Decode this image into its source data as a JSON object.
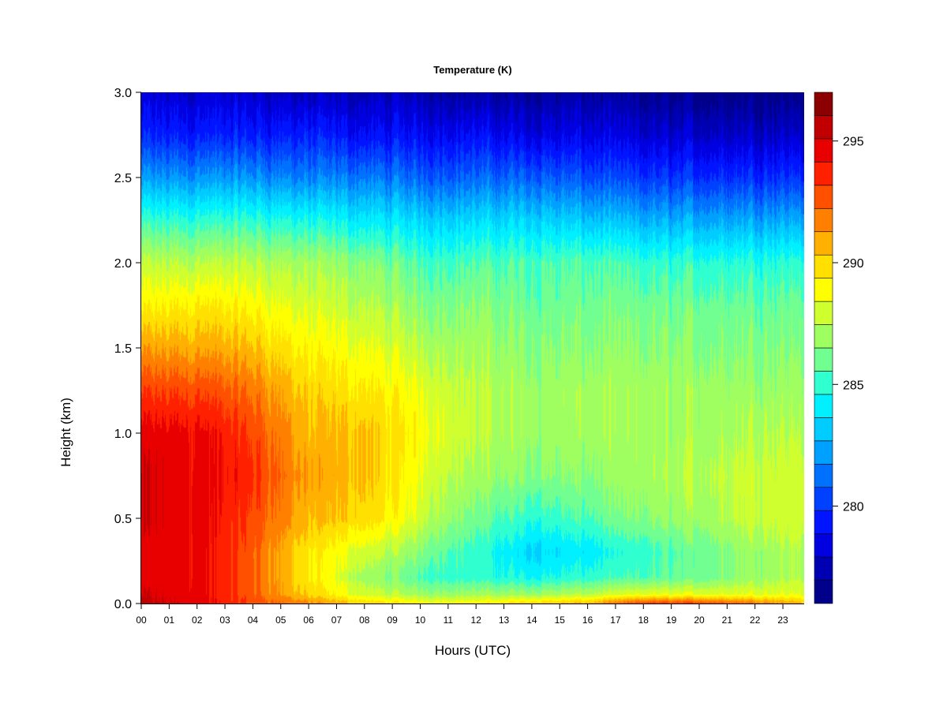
{
  "chart_data": {
    "type": "heatmap",
    "title": "Temperature (K)",
    "xlabel": "Hours (UTC)",
    "ylabel": "Height (km)",
    "x_ticks": [
      "00",
      "01",
      "02",
      "03",
      "04",
      "05",
      "06",
      "07",
      "08",
      "09",
      "10",
      "11",
      "12",
      "13",
      "14",
      "15",
      "16",
      "17",
      "18",
      "19",
      "20",
      "21",
      "22",
      "23"
    ],
    "y_ticks": [
      "0.0",
      "0.5",
      "1.0",
      "1.5",
      "2.0",
      "2.5",
      "3.0"
    ],
    "xlim": [
      0,
      23.8
    ],
    "ylim": [
      0,
      3.0
    ],
    "colorbar": {
      "label": "",
      "min": 276,
      "max": 297,
      "ticks": [
        "280",
        "285",
        "290",
        "295"
      ],
      "tick_values": [
        280,
        285,
        290,
        295
      ],
      "colors": [
        "#00008B",
        "#0000B3",
        "#0000E0",
        "#0014FF",
        "#0040FF",
        "#0070FF",
        "#00A0FF",
        "#00CCFF",
        "#00F0FF",
        "#30FFD0",
        "#70FF90",
        "#A0FF60",
        "#D0FF30",
        "#FFFF00",
        "#FFE000",
        "#FFB000",
        "#FF8000",
        "#FF5000",
        "#FF2000",
        "#E80000",
        "#C00000",
        "#8B0000"
      ]
    },
    "heights_km": [
      0.0,
      0.05,
      0.15,
      0.3,
      0.5,
      0.75,
      1.0,
      1.25,
      1.5,
      1.75,
      2.0,
      2.25,
      2.5,
      2.75,
      3.0
    ],
    "hours": [
      0,
      2,
      4,
      6,
      8,
      10,
      12,
      14,
      16,
      18,
      20,
      22,
      23.8
    ],
    "temperature_K": [
      [
        295.5,
        294.5,
        293.0,
        291.5,
        290.0,
        289.0,
        289.0,
        290.0,
        290.5,
        293.0,
        293.0,
        292.0,
        290.5
      ],
      [
        295.0,
        294.5,
        292.5,
        290.0,
        288.0,
        287.0,
        287.0,
        287.0,
        287.5,
        288.5,
        288.5,
        288.5,
        288.5
      ],
      [
        294.5,
        294.5,
        292.5,
        289.5,
        287.0,
        285.5,
        285.0,
        284.5,
        285.0,
        285.5,
        286.0,
        287.0,
        287.5
      ],
      [
        294.5,
        294.5,
        292.5,
        289.5,
        288.0,
        286.5,
        285.0,
        283.5,
        284.0,
        285.0,
        286.0,
        287.0,
        287.5
      ],
      [
        295.0,
        294.5,
        293.0,
        290.5,
        290.0,
        288.0,
        286.0,
        285.0,
        285.5,
        286.5,
        287.0,
        288.0,
        288.0
      ],
      [
        295.0,
        294.5,
        293.5,
        291.0,
        290.5,
        288.5,
        287.0,
        286.5,
        286.5,
        287.0,
        287.5,
        288.0,
        288.0
      ],
      [
        294.5,
        294.5,
        293.0,
        290.5,
        290.5,
        289.0,
        287.5,
        287.0,
        287.0,
        287.0,
        287.0,
        287.5,
        287.5
      ],
      [
        293.0,
        293.0,
        292.0,
        290.0,
        289.5,
        288.5,
        287.5,
        287.0,
        287.0,
        287.0,
        287.0,
        287.0,
        287.0
      ],
      [
        291.0,
        291.0,
        290.5,
        289.0,
        288.5,
        287.5,
        287.0,
        286.5,
        286.5,
        286.5,
        286.5,
        286.5,
        286.5
      ],
      [
        289.0,
        289.5,
        289.0,
        288.0,
        287.5,
        286.5,
        286.5,
        286.0,
        286.0,
        286.0,
        286.0,
        286.0,
        286.0
      ],
      [
        287.5,
        287.5,
        287.5,
        287.0,
        286.5,
        285.5,
        285.5,
        285.5,
        285.5,
        285.0,
        285.0,
        285.0,
        285.0
      ],
      [
        285.0,
        285.0,
        285.0,
        284.5,
        284.0,
        283.5,
        283.5,
        283.5,
        283.0,
        282.5,
        282.5,
        282.5,
        282.5
      ],
      [
        282.0,
        282.0,
        282.0,
        281.5,
        281.5,
        281.0,
        281.0,
        281.0,
        280.5,
        280.0,
        280.0,
        280.0,
        280.0
      ],
      [
        279.5,
        279.5,
        279.5,
        279.5,
        279.0,
        279.0,
        279.0,
        278.5,
        278.5,
        278.0,
        278.0,
        278.0,
        278.0
      ],
      [
        278.0,
        278.0,
        278.0,
        277.5,
        277.5,
        277.5,
        277.0,
        277.0,
        277.0,
        276.5,
        276.5,
        276.5,
        276.5
      ]
    ]
  }
}
